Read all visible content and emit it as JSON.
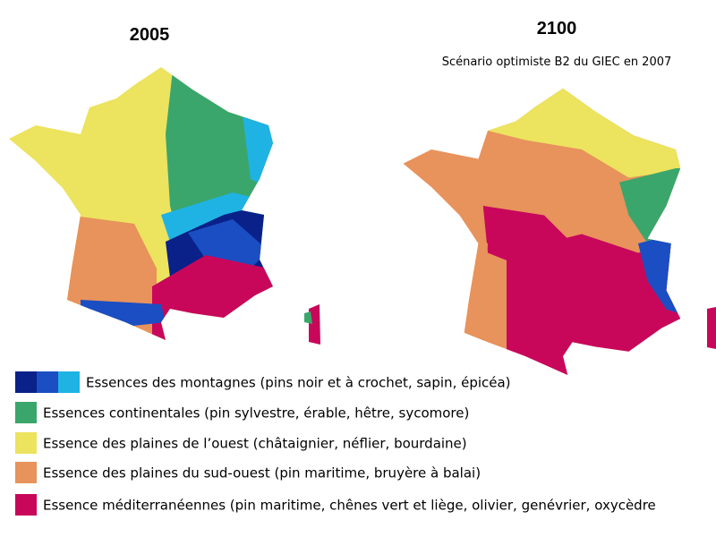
{
  "maps": [
    {
      "title": "2005"
    },
    {
      "title": "2100",
      "subtitle": "Scénario optimiste B2 du GIEC en 2007"
    }
  ],
  "legend": [
    {
      "label": "Essences des montagnes (pins noir et à crochet, sapin, épicéa)",
      "colors": [
        "#0a2189",
        "#1a4ec2",
        "#1fb3e4"
      ]
    },
    {
      "label": "Essences continentales (pin sylvestre, érable, hêtre, sycomore)",
      "colors": [
        "#3aa66b"
      ]
    },
    {
      "label": "Essence des plaines de l’ouest (châtaignier, néflier, bourdaine)",
      "colors": [
        "#ece35e"
      ]
    },
    {
      "label": "Essence des plaines du sud-ouest (pin maritime, bruyère à balai)",
      "colors": [
        "#e8925c"
      ]
    },
    {
      "label": "Essence méditerranéennes (pin maritime, chênes vert et liège, olivier, genévrier, oxycèdre",
      "colors": [
        "#c8075b"
      ]
    }
  ]
}
